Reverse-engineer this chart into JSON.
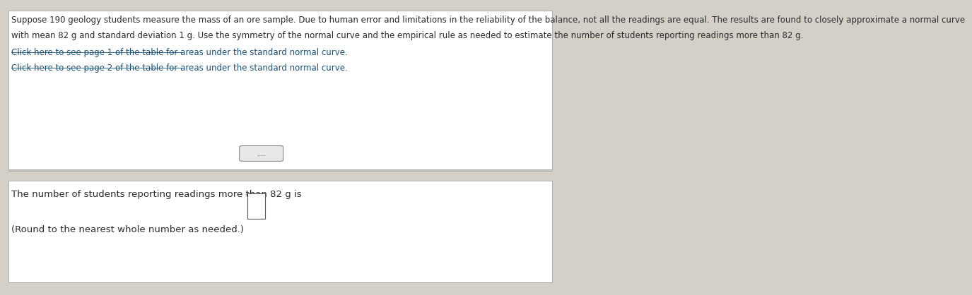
{
  "background_color": "#d4d0c8",
  "top_panel_color": "#ffffff",
  "bottom_panel_color": "#ffffff",
  "line1": "Suppose 190 geology students measure the mass of an ore sample. Due to human error and limitations in the reliability of the balance, not all the readings are equal. The results are found to closely approximate a normal curve",
  "line2": "with mean 82 g and standard deviation 1 g. Use the symmetry of the normal curve and the empirical rule as needed to estimate the number of students reporting readings more than 82 g.",
  "link1": "Click here to see page 1 of the table for areas under the standard normal curve.",
  "link2": "Click here to see page 2 of the table for areas under the standard normal curve.",
  "dots": ".....",
  "answer_line1": "The number of students reporting readings more than 82 g is",
  "answer_line2": "(Round to the nearest whole number as needed.)",
  "font_size_main": 8.5,
  "font_size_links": 8.5,
  "font_size_answer": 9.5,
  "text_color": "#2b2b2b",
  "link_color": "#1a5276",
  "separator_color": "#aaaaaa"
}
